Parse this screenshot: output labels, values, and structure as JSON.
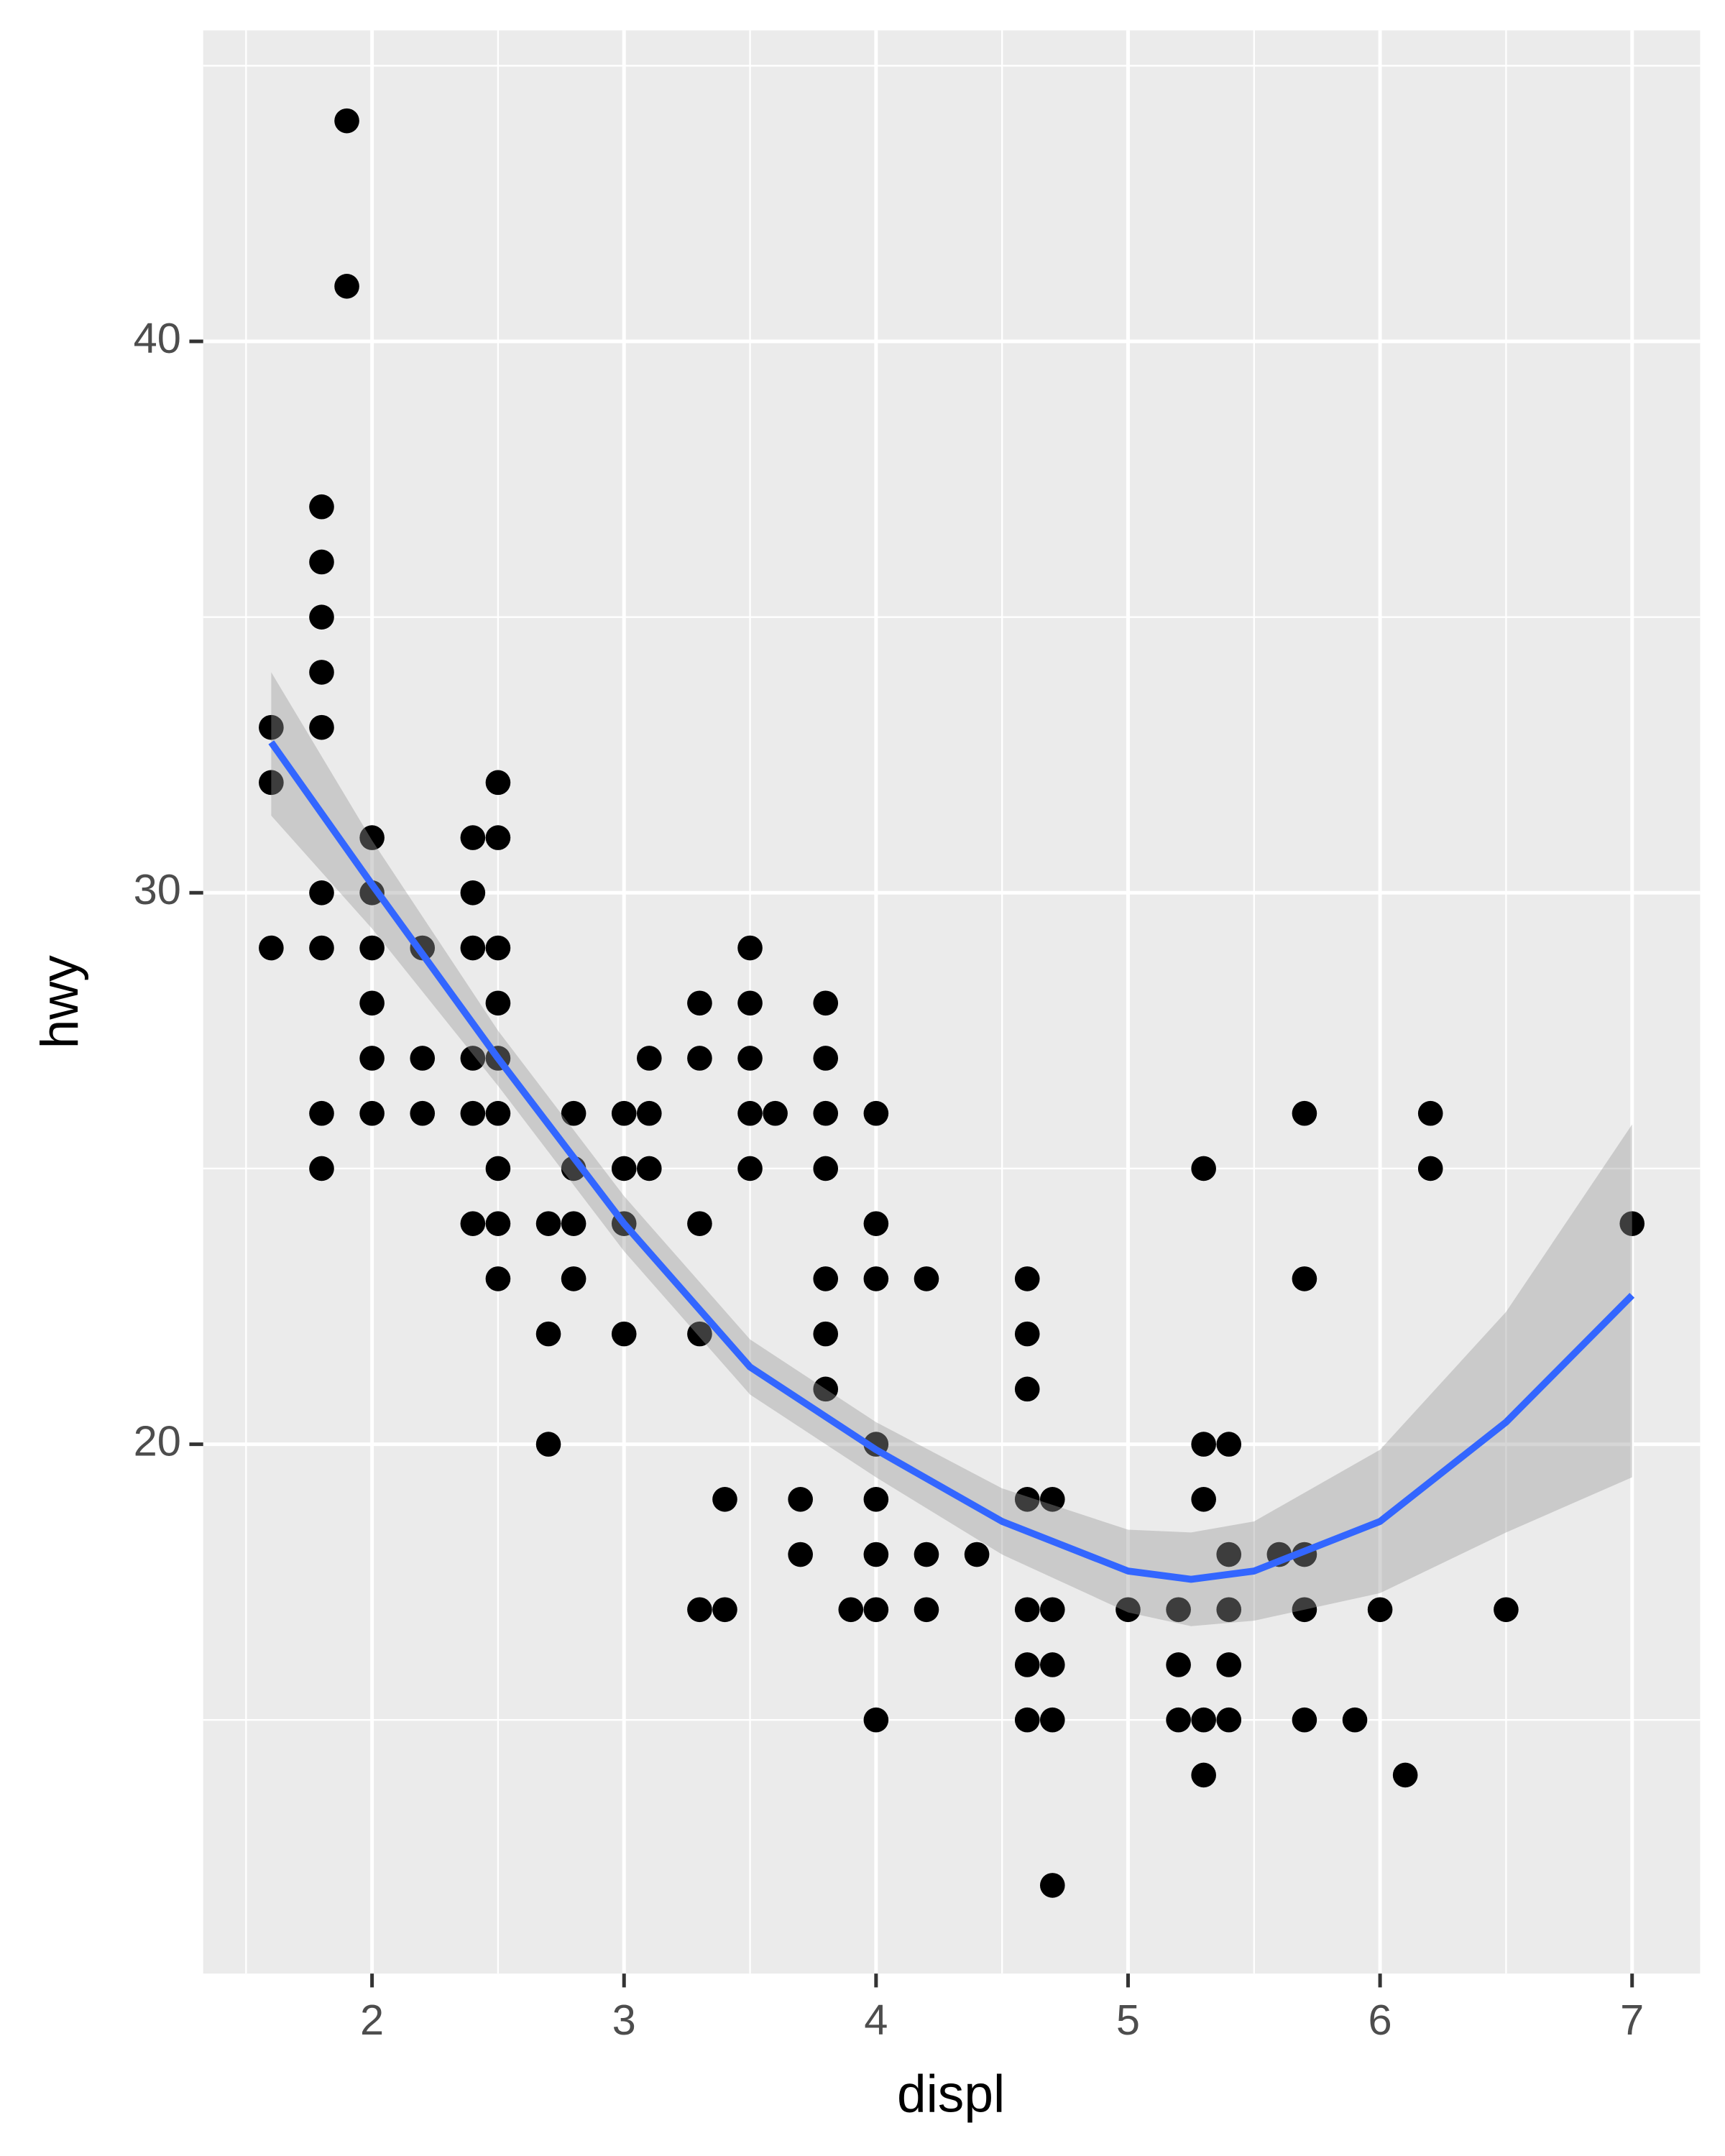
{
  "chart_data": {
    "type": "scatter",
    "x_label": "displ",
    "y_label": "hwy",
    "xlim": [
      1.33,
      7.27
    ],
    "ylim": [
      10.4,
      45.64
    ],
    "xticks": [
      2,
      3,
      4,
      5,
      6,
      7
    ],
    "yticks": [
      20,
      30,
      40
    ],
    "x_minor_grid": [
      1.5,
      2.5,
      3.5,
      4.5,
      5.5,
      6.5
    ],
    "y_minor_grid": [
      15,
      25,
      35,
      45
    ],
    "grid": true,
    "panel_color": "#ebebeb",
    "color": "#000000",
    "x": [
      1.6,
      1.6,
      1.6,
      1.8,
      1.8,
      1.8,
      1.8,
      1.8,
      1.8,
      1.8,
      1.8,
      1.8,
      1.9,
      1.9,
      2,
      2,
      2,
      2,
      2,
      2,
      2.2,
      2.2,
      2.2,
      2.4,
      2.4,
      2.4,
      2.4,
      2.4,
      2.4,
      2.5,
      2.5,
      2.5,
      2.5,
      2.5,
      2.5,
      2.5,
      2.5,
      2.5,
      2.7,
      2.7,
      2.7,
      2.8,
      2.8,
      2.8,
      2.8,
      3,
      3,
      3,
      3,
      3.1,
      3.1,
      3.1,
      3.3,
      3.3,
      3.3,
      3.3,
      3.3,
      3.4,
      3.4,
      3.5,
      3.5,
      3.5,
      3.5,
      3.5,
      3.6,
      3.7,
      3.7,
      3.8,
      3.8,
      3.8,
      3.8,
      3.8,
      3.8,
      3.8,
      3.9,
      4,
      4,
      4,
      4,
      4,
      4,
      4,
      4,
      4.2,
      4.2,
      4.2,
      4.4,
      4.6,
      4.6,
      4.6,
      4.6,
      4.6,
      4.6,
      4.6,
      4.7,
      4.7,
      4.7,
      4.7,
      4.7,
      5,
      5.2,
      5.2,
      5.2,
      5.3,
      5.3,
      5.3,
      5.3,
      5.3,
      5.4,
      5.4,
      5.4,
      5.4,
      5.4,
      5.6,
      5.7,
      5.7,
      5.7,
      5.7,
      5.7,
      5.9,
      6,
      6.1,
      6.2,
      6.2,
      6.5,
      7
    ],
    "y": [
      33,
      32,
      29,
      37,
      36,
      35,
      34,
      33,
      30,
      29,
      26,
      25,
      44,
      41,
      31,
      30,
      29,
      28,
      27,
      26,
      29,
      27,
      26,
      31,
      30,
      29,
      27,
      26,
      24,
      32,
      31,
      29,
      28,
      27,
      26,
      25,
      24,
      23,
      24,
      22,
      20,
      26,
      25,
      24,
      23,
      26,
      25,
      24,
      22,
      27,
      26,
      25,
      28,
      27,
      24,
      22,
      17,
      19,
      17,
      29,
      28,
      27,
      26,
      25,
      26,
      19,
      18,
      28,
      27,
      26,
      25,
      23,
      22,
      21,
      17,
      26,
      24,
      23,
      20,
      19,
      18,
      17,
      15,
      23,
      18,
      17,
      18,
      23,
      22,
      21,
      19,
      17,
      16,
      15,
      19,
      17,
      16,
      15,
      12,
      17,
      17,
      16,
      15,
      25,
      20,
      19,
      15,
      14,
      20,
      18,
      17,
      16,
      15,
      18,
      26,
      23,
      18,
      17,
      15,
      15,
      17,
      14,
      26,
      25,
      17,
      24
    ],
    "smooth": {
      "color": "#3366ff",
      "band_color": "#999999",
      "x": [
        1.6,
        2,
        2.5,
        3,
        3.5,
        4,
        4.5,
        5,
        5.25,
        5.5,
        6,
        6.5,
        7
      ],
      "y": [
        32.73,
        30.15,
        27.0,
        24.0,
        21.4,
        19.9,
        18.6,
        17.7,
        17.55,
        17.7,
        18.6,
        20.4,
        22.7
      ],
      "ymin": [
        31.4,
        29.35,
        26.5,
        23.5,
        20.9,
        19.4,
        18.0,
        16.95,
        16.7,
        16.8,
        17.3,
        18.4,
        19.4
      ],
      "ymax": [
        34.0,
        30.95,
        27.5,
        24.5,
        21.9,
        20.4,
        19.2,
        18.45,
        18.4,
        18.6,
        19.9,
        22.4,
        25.8
      ]
    }
  }
}
